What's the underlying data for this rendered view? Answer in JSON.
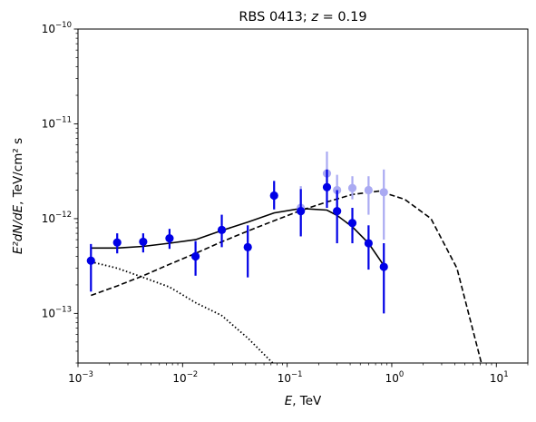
{
  "chart_data": {
    "type": "scatter",
    "title": "RBS 0413; z = 0.19",
    "title_main": "RBS 0413; ",
    "title_z_var": "z",
    "title_z_eq": " = 0.19",
    "xlabel_var": "E",
    "xlabel_unit": ", TeV",
    "ylabel_var": "E²dN/dE",
    "ylabel_unit": ", TeV/cm² s",
    "x_scale": "log",
    "y_scale": "log",
    "xlim": [
      0.001,
      20
    ],
    "ylim": [
      3e-14,
      1e-10
    ],
    "grid": false,
    "legend": "none",
    "x_ticks": [
      {
        "value": 0.001,
        "base": "10",
        "exp": "−3"
      },
      {
        "value": 0.01,
        "base": "10",
        "exp": "−2"
      },
      {
        "value": 0.1,
        "base": "10",
        "exp": "−1"
      },
      {
        "value": 1,
        "base": "10",
        "exp": "0"
      },
      {
        "value": 10,
        "base": "10",
        "exp": "1"
      }
    ],
    "y_ticks": [
      {
        "value": 1e-13,
        "base": "10",
        "exp": "−13"
      },
      {
        "value": 1e-12,
        "base": "10",
        "exp": "−12"
      },
      {
        "value": 1e-11,
        "base": "10",
        "exp": "−11"
      },
      {
        "value": 1e-10,
        "base": "10",
        "exp": "−10"
      }
    ],
    "colors": {
      "points": "#0000e6",
      "points_faded": "#aaaaf2",
      "curves": "#000000"
    },
    "series": [
      {
        "style": "points-faded",
        "points": [
          {
            "x": 0.135,
            "y": 1.3e-12,
            "ylo": 6.8e-13,
            "yhi": 2.2e-12
          },
          {
            "x": 0.24,
            "y": 3e-12,
            "ylo": 1.9e-12,
            "yhi": 5.1e-12
          },
          {
            "x": 0.3,
            "y": 2e-12,
            "ylo": 1.3e-12,
            "yhi": 2.9e-12
          },
          {
            "x": 0.42,
            "y": 2.1e-12,
            "ylo": 1.6e-12,
            "yhi": 2.8e-12
          },
          {
            "x": 0.6,
            "y": 2e-12,
            "ylo": 1.1e-12,
            "yhi": 2.8e-12
          },
          {
            "x": 0.84,
            "y": 1.9e-12,
            "ylo": 6e-13,
            "yhi": 3.3e-12
          }
        ]
      },
      {
        "style": "points",
        "points": [
          {
            "x": 0.00133,
            "y": 3.6e-13,
            "ylo": 1.7e-13,
            "yhi": 5.4e-13
          },
          {
            "x": 0.00237,
            "y": 5.6e-13,
            "ylo": 4.3e-13,
            "yhi": 7e-13
          },
          {
            "x": 0.0042,
            "y": 5.7e-13,
            "ylo": 4.4e-13,
            "yhi": 7e-13
          },
          {
            "x": 0.0075,
            "y": 6.2e-13,
            "ylo": 4.8e-13,
            "yhi": 7.8e-13
          },
          {
            "x": 0.0133,
            "y": 4e-13,
            "ylo": 2.5e-13,
            "yhi": 5.8e-13
          },
          {
            "x": 0.0237,
            "y": 7.6e-13,
            "ylo": 5e-13,
            "yhi": 1.1e-12
          },
          {
            "x": 0.042,
            "y": 5e-13,
            "ylo": 2.4e-13,
            "yhi": 8.5e-13
          },
          {
            "x": 0.075,
            "y": 1.75e-12,
            "ylo": 1.25e-12,
            "yhi": 2.5e-12
          },
          {
            "x": 0.135,
            "y": 1.2e-12,
            "ylo": 6.5e-13,
            "yhi": 2.05e-12
          },
          {
            "x": 0.24,
            "y": 2.15e-12,
            "ylo": 1.3e-12,
            "yhi": 3.3e-12
          },
          {
            "x": 0.3,
            "y": 1.2e-12,
            "ylo": 5.5e-13,
            "yhi": 2e-12
          },
          {
            "x": 0.42,
            "y": 9e-13,
            "ylo": 5.5e-13,
            "yhi": 1.3e-12
          },
          {
            "x": 0.6,
            "y": 5.5e-13,
            "ylo": 2.9e-13,
            "yhi": 8.5e-13
          },
          {
            "x": 0.84,
            "y": 3.1e-13,
            "ylo": 1e-13,
            "yhi": 5.5e-13
          }
        ]
      },
      {
        "style": "solid",
        "x": [
          0.00133,
          0.00237,
          0.0042,
          0.0075,
          0.0133,
          0.0237,
          0.042,
          0.075,
          0.135,
          0.24,
          0.3,
          0.42,
          0.6,
          0.84
        ],
        "y": [
          4.9e-13,
          4.9e-13,
          5.1e-13,
          5.5e-13,
          6e-13,
          7.5e-13,
          9.2e-13,
          1.15e-12,
          1.28e-12,
          1.23e-12,
          1.08e-12,
          8.2e-13,
          5.5e-13,
          3.2e-13
        ]
      },
      {
        "style": "dashed",
        "x": [
          0.00133,
          0.00237,
          0.0042,
          0.0075,
          0.0133,
          0.0237,
          0.042,
          0.075,
          0.135,
          0.24,
          0.42,
          0.75,
          1.33,
          2.37,
          4.2,
          7.5
        ],
        "y": [
          1.55e-13,
          1.95e-13,
          2.5e-13,
          3.3e-13,
          4.3e-13,
          5.7e-13,
          7.4e-13,
          9.5e-13,
          1.22e-12,
          1.5e-12,
          1.8e-12,
          1.95e-12,
          1.6e-12,
          1e-12,
          3e-13,
          2.5e-14
        ]
      },
      {
        "style": "dotted",
        "x": [
          0.00133,
          0.00237,
          0.0042,
          0.0075,
          0.0133,
          0.0237,
          0.042,
          0.075
        ],
        "y": [
          3.5e-13,
          3e-13,
          2.4e-13,
          1.9e-13,
          1.3e-13,
          9.5e-14,
          5.5e-14,
          2.9e-14
        ]
      }
    ]
  }
}
